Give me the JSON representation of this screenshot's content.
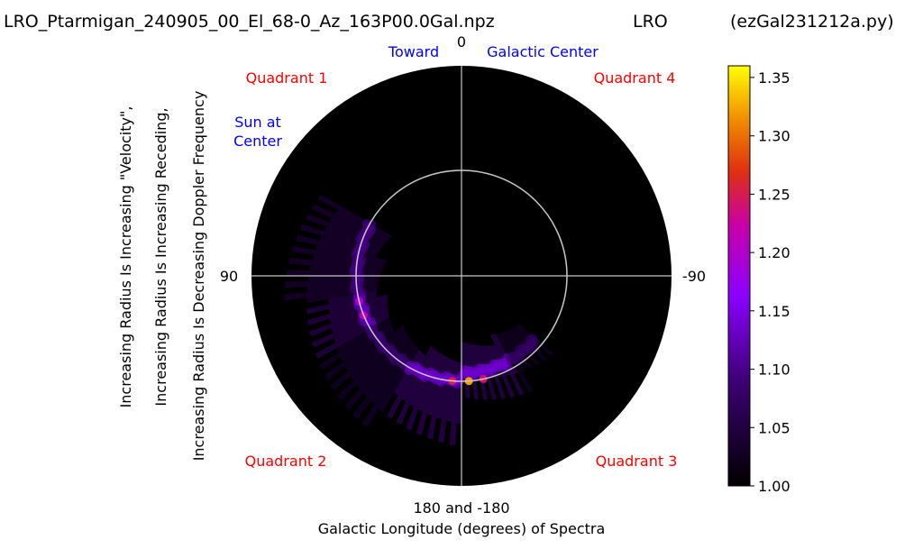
{
  "chart_data": {
    "type": "heatmap",
    "projection": "polar",
    "title_left": "LRO_Ptarmigan_240905_00_El_68-0_Az_163P00.0Gal.npz",
    "title_center": "LRO",
    "title_right": "(ezGal231212a.py)",
    "xlabel_line1": "180 and -180",
    "xlabel_line2": "Galactic Longitude (degrees) of Spectra",
    "ylabel_lines": [
      "Increasing Radius Is Increasing \"Velocity\",",
      "Increasing Radius Is Increasing Receding,",
      "Increasing Radius Is Decreasing Doppler Frequency"
    ],
    "angle_labels": {
      "top": "0",
      "left": "90",
      "right": "-90"
    },
    "toward_label": "Toward",
    "galactic_center_label": "Galactic Center",
    "sun_label_lines": [
      "Sun at",
      "Center"
    ],
    "quadrants": [
      "Quadrant 1",
      "Quadrant 2",
      "Quadrant 3",
      "Quadrant 4"
    ],
    "colorbar": {
      "min": 1.0,
      "max": 1.36,
      "ticks": [
        "1.00",
        "1.05",
        "1.10",
        "1.15",
        "1.20",
        "1.25",
        "1.30",
        "1.35"
      ],
      "tick_values": [
        1.0,
        1.05,
        1.1,
        1.15,
        1.2,
        1.25,
        1.3,
        1.35
      ],
      "colormap": "gnuplot"
    },
    "colors": {
      "plot_background": "#000000",
      "quadrant_text": "#ff0000",
      "annotation_text": "#0000ff",
      "grid": "#c8c8c8"
    },
    "emission_regions": [
      {
        "lon_from": 100,
        "lon_to": 120,
        "level": 1.11
      },
      {
        "lon_from": 60,
        "lon_to": 100,
        "level": 1.08
      },
      {
        "lon_from": 120,
        "lon_to": 150,
        "level": 1.07
      },
      {
        "lon_from": 150,
        "lon_to": 180,
        "level": 1.12
      },
      {
        "lon_from": -180,
        "lon_to": -150,
        "level": 1.12
      },
      {
        "lon_from": -150,
        "lon_to": -130,
        "level": 1.06
      }
    ],
    "peaks": [
      {
        "lon": 112,
        "level": 1.22
      },
      {
        "lon": 104,
        "level": 1.2
      },
      {
        "lon": 175,
        "level": 1.25
      },
      {
        "lon": -176,
        "level": 1.32
      },
      {
        "lon": -168,
        "level": 1.24
      }
    ]
  }
}
